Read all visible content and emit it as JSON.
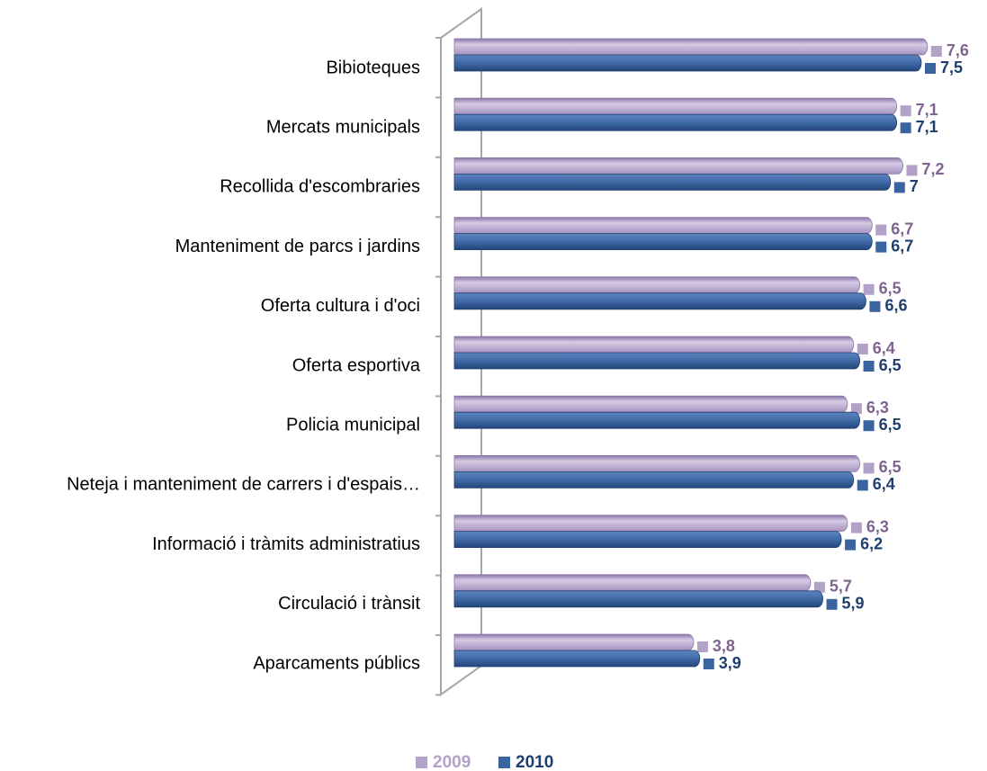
{
  "chart_data": {
    "type": "bar",
    "orientation": "horizontal",
    "categories": [
      "Bibioteques",
      "Mercats municipals",
      "Recollida d'escombraries",
      "Manteniment de parcs i jardins",
      "Oferta cultura i d'oci",
      "Oferta esportiva",
      "Policia municipal",
      "Neteja i manteniment de carrers i d'espais…",
      "Informació i tràmits administratius",
      "Circulació i trànsit",
      "Aparcaments públics"
    ],
    "series": [
      {
        "name": "2009",
        "color": "#b3a2c7",
        "label_color": "#7f6491",
        "values": [
          7.6,
          7.1,
          7.2,
          6.7,
          6.5,
          6.4,
          6.3,
          6.5,
          6.3,
          5.7,
          3.8
        ],
        "value_labels": [
          "7,6",
          "7,1",
          "7,2",
          "6,7",
          "6,5",
          "6,4",
          "6,3",
          "6,5",
          "6,3",
          "5,7",
          "3,8"
        ]
      },
      {
        "name": "2010",
        "color": "#3a64a0",
        "label_color": "#1f3f6e",
        "values": [
          7.5,
          7.1,
          7.0,
          6.7,
          6.6,
          6.5,
          6.5,
          6.4,
          6.2,
          5.9,
          3.9
        ],
        "value_labels": [
          "7,5",
          "7,1",
          "7",
          "6,7",
          "6,6",
          "6,5",
          "6,5",
          "6,4",
          "6,2",
          "5,9",
          "3,9"
        ]
      }
    ],
    "legend": "bottom"
  }
}
